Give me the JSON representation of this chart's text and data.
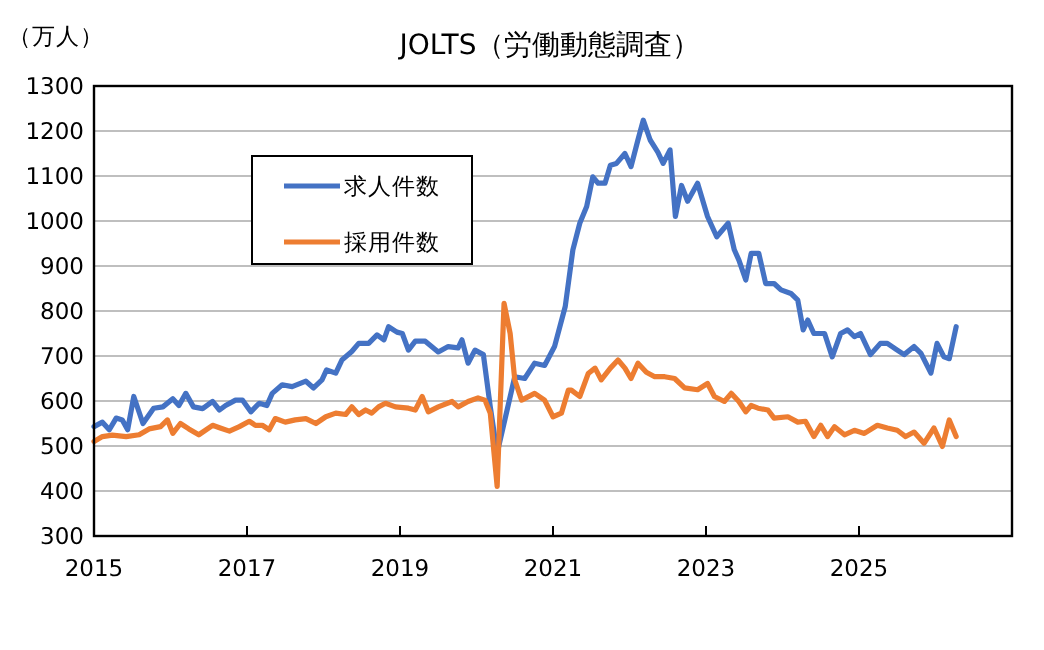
{
  "chart_data": {
    "type": "line",
    "title": "JOLTS（労働動態調査）",
    "ylabel": "（万人）",
    "xlim": [
      2015,
      2027
    ],
    "xticks": [
      2015,
      2017,
      2019,
      2021,
      2023,
      2025
    ],
    "ylim": [
      300,
      1300
    ],
    "yticks": [
      300,
      400,
      500,
      600,
      700,
      800,
      900,
      1000,
      1100,
      1200,
      1300
    ],
    "grid": "y",
    "legend": "top left",
    "line_style": "solid",
    "series": [
      {
        "name": "求人件数",
        "color": "#4472c4",
        "x": [
          2015.0,
          2015.11,
          2015.2,
          2015.29,
          2015.37,
          2015.44,
          2015.52,
          2015.64,
          2015.78,
          2015.9,
          2016.03,
          2016.11,
          2016.2,
          2016.3,
          2016.42,
          2016.55,
          2016.64,
          2016.72,
          2016.85,
          2016.94,
          2017.05,
          2017.16,
          2017.26,
          2017.33,
          2017.46,
          2017.59,
          2017.77,
          2017.87,
          2017.98,
          2018.04,
          2018.16,
          2018.24,
          2018.37,
          2018.46,
          2018.59,
          2018.7,
          2018.79,
          2018.85,
          2018.96,
          2019.03,
          2019.11,
          2019.2,
          2019.33,
          2019.5,
          2019.63,
          2019.76,
          2019.81,
          2019.89,
          2019.98,
          2020.09,
          2020.18,
          2020.27,
          2020.5,
          2020.63,
          2020.76,
          2020.89,
          2021.02,
          2021.16,
          2021.26,
          2021.35,
          2021.44,
          2021.52,
          2021.59,
          2021.68,
          2021.75,
          2021.83,
          2021.94,
          2022.02,
          2022.11,
          2022.18,
          2022.27,
          2022.37,
          2022.44,
          2022.53,
          2022.6,
          2022.68,
          2022.76,
          2022.89,
          2023.02,
          2023.14,
          2023.29,
          2023.37,
          2023.43,
          2023.52,
          2023.59,
          2023.69,
          2023.78,
          2023.89,
          2023.98,
          2024.11,
          2024.2,
          2024.27,
          2024.33,
          2024.41,
          2024.55,
          2024.65,
          2024.76,
          2024.85,
          2024.94,
          2025.02,
          2025.15,
          2025.28,
          2025.37,
          2025.5,
          2025.59,
          2025.72,
          2025.81,
          2025.94,
          2026.02,
          2026.11,
          2026.18,
          2026.27
        ],
        "values": [
          543,
          553,
          536,
          562,
          558,
          536,
          610,
          550,
          584,
          587,
          605,
          590,
          617,
          587,
          583,
          599,
          580,
          590,
          602,
          602,
          576,
          595,
          590,
          617,
          636,
          632,
          644,
          629,
          647,
          669,
          662,
          691,
          710,
          728,
          728,
          747,
          736,
          765,
          753,
          750,
          713,
          733,
          733,
          709,
          721,
          718,
          736,
          684,
          713,
          703,
          587,
          484,
          654,
          650,
          684,
          679,
          721,
          810,
          936,
          995,
          1032,
          1098,
          1084,
          1084,
          1124,
          1128,
          1150,
          1121,
          1180,
          1224,
          1180,
          1153,
          1128,
          1158,
          1010,
          1079,
          1044,
          1084,
          1010,
          965,
          995,
          936,
          913,
          869,
          928,
          928,
          861,
          861,
          847,
          839,
          824,
          758,
          780,
          750,
          750,
          698,
          750,
          758,
          743,
          750,
          703,
          728,
          728,
          713,
          703,
          721,
          706,
          662,
          728,
          698,
          694,
          765
        ]
      },
      {
        "name": "採用件数",
        "color": "#ed7d31",
        "x": [
          2015.0,
          2015.11,
          2015.24,
          2015.42,
          2015.59,
          2015.72,
          2015.87,
          2015.96,
          2016.03,
          2016.13,
          2016.24,
          2016.37,
          2016.55,
          2016.65,
          2016.77,
          2016.9,
          2017.03,
          2017.11,
          2017.2,
          2017.29,
          2017.37,
          2017.5,
          2017.63,
          2017.77,
          2017.9,
          2018.03,
          2018.16,
          2018.29,
          2018.37,
          2018.46,
          2018.55,
          2018.63,
          2018.72,
          2018.81,
          2018.94,
          2019.11,
          2019.2,
          2019.29,
          2019.37,
          2019.5,
          2019.68,
          2019.76,
          2019.89,
          2020.02,
          2020.11,
          2020.18,
          2020.27,
          2020.36,
          2020.44,
          2020.5,
          2020.59,
          2020.76,
          2020.89,
          2021.0,
          2021.11,
          2021.2,
          2021.24,
          2021.35,
          2021.46,
          2021.55,
          2021.63,
          2021.75,
          2021.85,
          2021.94,
          2022.02,
          2022.11,
          2022.22,
          2022.33,
          2022.46,
          2022.59,
          2022.72,
          2022.89,
          2023.02,
          2023.11,
          2023.24,
          2023.33,
          2023.43,
          2023.52,
          2023.59,
          2023.68,
          2023.81,
          2023.89,
          2024.07,
          2024.2,
          2024.3,
          2024.41,
          2024.5,
          2024.59,
          2024.68,
          2024.81,
          2024.94,
          2025.07,
          2025.24,
          2025.37,
          2025.5,
          2025.61,
          2025.72,
          2025.85,
          2025.98,
          2026.09,
          2026.18,
          2026.27
        ],
        "values": [
          510,
          521,
          524,
          521,
          525,
          538,
          543,
          558,
          528,
          550,
          538,
          525,
          546,
          540,
          533,
          543,
          555,
          546,
          546,
          536,
          561,
          553,
          558,
          561,
          550,
          565,
          573,
          570,
          587,
          570,
          580,
          573,
          587,
          595,
          587,
          584,
          580,
          610,
          576,
          587,
          599,
          587,
          599,
          607,
          602,
          573,
          410,
          817,
          750,
          647,
          602,
          617,
          602,
          565,
          573,
          624,
          624,
          610,
          661,
          673,
          647,
          673,
          691,
          673,
          650,
          684,
          664,
          654,
          654,
          650,
          629,
          625,
          639,
          610,
          599,
          617,
          599,
          576,
          590,
          584,
          580,
          562,
          565,
          553,
          555,
          521,
          546,
          521,
          543,
          525,
          535,
          528,
          546,
          540,
          535,
          521,
          531,
          506,
          540,
          499,
          558,
          521
        ]
      }
    ]
  }
}
